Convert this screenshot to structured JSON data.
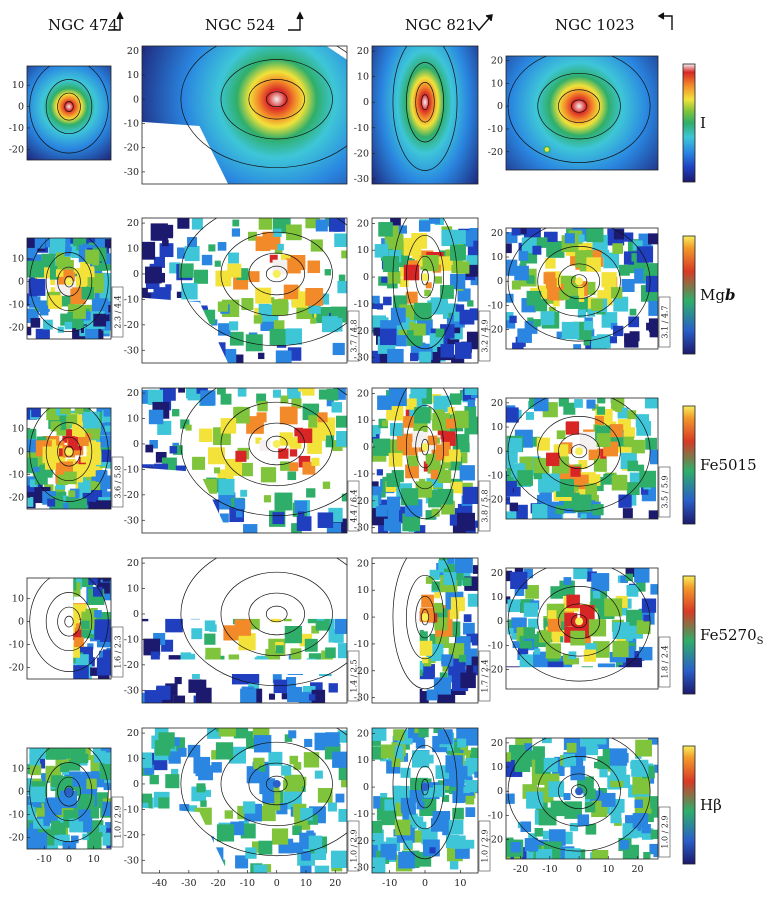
{
  "figure": {
    "galaxies": [
      {
        "name": "NGC 474",
        "arrow": "north-up-east-left-1"
      },
      {
        "name": "NGC 524",
        "arrow": "north-up-east-left-1"
      },
      {
        "name": "NGC 821",
        "arrow": "north-up-east-left-2"
      },
      {
        "name": "NGC 1023",
        "arrow": "north-up-east-left-3"
      }
    ],
    "index_labels": [
      {
        "text": "I",
        "sub": ""
      },
      {
        "text": "Mg",
        "sub": "b",
        "sub_style": "bold-italic"
      },
      {
        "text": "Fe5015",
        "sub": ""
      },
      {
        "text": "Fe5270",
        "sub": "S",
        "sub_style": "subscript"
      },
      {
        "text": "Hβ",
        "sub": ""
      }
    ],
    "ranges": [
      [
        "",
        "",
        "",
        ""
      ],
      [
        "2.3 / 4.4",
        "3.7 / 4.8",
        "3.2 / 4.9",
        "3.1 / 4.7"
      ],
      [
        "3.6 / 5.8",
        "4.4 / 6.4",
        "3.8 / 5.8",
        "3.5 / 5.9"
      ],
      [
        "1.6 / 2.3",
        "1.4 / 2.5",
        "1.7 / 2.4",
        "1.8 / 2.4"
      ],
      [
        "1.0 / 2.9",
        "1.0 / 2.9",
        "1.0 / 2.9",
        "1.0 / 2.9"
      ]
    ],
    "colormap": [
      "#1c1a6e",
      "#1f3fbf",
      "#2a86e0",
      "#3ec6d8",
      "#2fae6a",
      "#7fc43a",
      "#f2e23a",
      "#f28a2a",
      "#d82626",
      "#f4f0f0"
    ],
    "contour_color": "#111111"
  },
  "chart_data": {
    "type": "heatmap",
    "title": "",
    "description_units": "arcsec",
    "panels_per_row": 4,
    "rows": [
      "I",
      "Mgb",
      "Fe5015",
      "Fe5270S",
      "Hβ"
    ],
    "axes": [
      {
        "galaxy": "NGC 474",
        "xlim": [
          -17,
          17
        ],
        "ylim": [
          -25,
          19
        ],
        "xticks": [
          -10,
          0,
          10
        ],
        "yticks": [
          10,
          0,
          -10,
          -20
        ]
      },
      {
        "galaxy": "NGC 524",
        "xlim": [
          -46,
          24
        ],
        "ylim": [
          -35,
          22
        ],
        "xticks": [
          -40,
          -30,
          -20,
          -10,
          0,
          10,
          20
        ],
        "yticks": [
          20,
          10,
          0,
          -10,
          -20,
          -30
        ]
      },
      {
        "galaxy": "NGC 821",
        "xlim": [
          -15,
          15
        ],
        "ylim": [
          -32,
          22
        ],
        "xticks": [
          -10,
          0,
          10
        ],
        "yticks": [
          20,
          10,
          0,
          -10,
          -20,
          -30
        ]
      },
      {
        "galaxy": "NGC 1023",
        "xlim": [
          -25,
          27
        ],
        "ylim": [
          -28,
          22
        ],
        "xticks": [
          -20,
          -10,
          0,
          10,
          20
        ],
        "yticks": [
          20,
          10,
          0,
          -10,
          -20
        ]
      }
    ]
  }
}
